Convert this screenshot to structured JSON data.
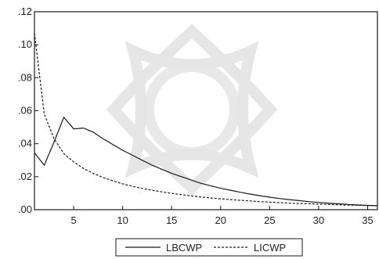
{
  "chart_data": {
    "type": "line",
    "title": "",
    "xlabel": "",
    "ylabel": "",
    "xlim": [
      1,
      36
    ],
    "ylim": [
      0,
      0.12
    ],
    "x_ticks": [
      5,
      10,
      15,
      20,
      25,
      30,
      35
    ],
    "x_tick_labels": [
      "5",
      "10",
      "15",
      "20",
      "25",
      "30",
      "35"
    ],
    "y_ticks": [
      0,
      0.02,
      0.04,
      0.06,
      0.08,
      0.1,
      0.12
    ],
    "y_tick_labels": [
      ".00",
      ".02",
      ".04",
      ".06",
      ".08",
      ".10",
      ".12"
    ],
    "grid": false,
    "legend_position": "bottom-center",
    "series": [
      {
        "name": "LBCWP",
        "style": "solid",
        "color": "#1a1a1a",
        "x": [
          1,
          2,
          3,
          4,
          5,
          6,
          7,
          8,
          9,
          10,
          11,
          12,
          13,
          14,
          15,
          16,
          17,
          18,
          19,
          20,
          21,
          22,
          23,
          24,
          25,
          26,
          27,
          28,
          29,
          30,
          31,
          32,
          33,
          34,
          35,
          36
        ],
        "y": [
          0.0345,
          0.027,
          0.041,
          0.056,
          0.049,
          0.0495,
          0.047,
          0.043,
          0.0395,
          0.036,
          0.033,
          0.03,
          0.027,
          0.0245,
          0.022,
          0.02,
          0.018,
          0.016,
          0.0145,
          0.013,
          0.0118,
          0.0106,
          0.0095,
          0.0085,
          0.0076,
          0.0068,
          0.0061,
          0.0055,
          0.0049,
          0.0044,
          0.004,
          0.0036,
          0.0032,
          0.0029,
          0.0026,
          0.0024
        ]
      },
      {
        "name": "LICWP",
        "style": "dashed",
        "color": "#1a1a1a",
        "x": [
          1,
          2,
          3,
          4,
          5,
          6,
          7,
          8,
          9,
          10,
          11,
          12,
          13,
          14,
          15,
          16,
          17,
          18,
          19,
          20,
          21,
          22,
          23,
          24,
          25,
          26,
          27,
          28,
          29,
          30,
          31,
          32,
          33,
          34,
          35,
          36
        ],
        "y": [
          0.107,
          0.058,
          0.043,
          0.034,
          0.029,
          0.025,
          0.022,
          0.0195,
          0.0175,
          0.0157,
          0.0142,
          0.0129,
          0.0118,
          0.0108,
          0.0099,
          0.0091,
          0.0084,
          0.0077,
          0.0071,
          0.0066,
          0.0061,
          0.0057,
          0.0053,
          0.0049,
          0.0046,
          0.0043,
          0.004,
          0.0038,
          0.0036,
          0.0034,
          0.0032,
          0.003,
          0.0028,
          0.0027,
          0.0025,
          0.0024
        ]
      }
    ]
  }
}
